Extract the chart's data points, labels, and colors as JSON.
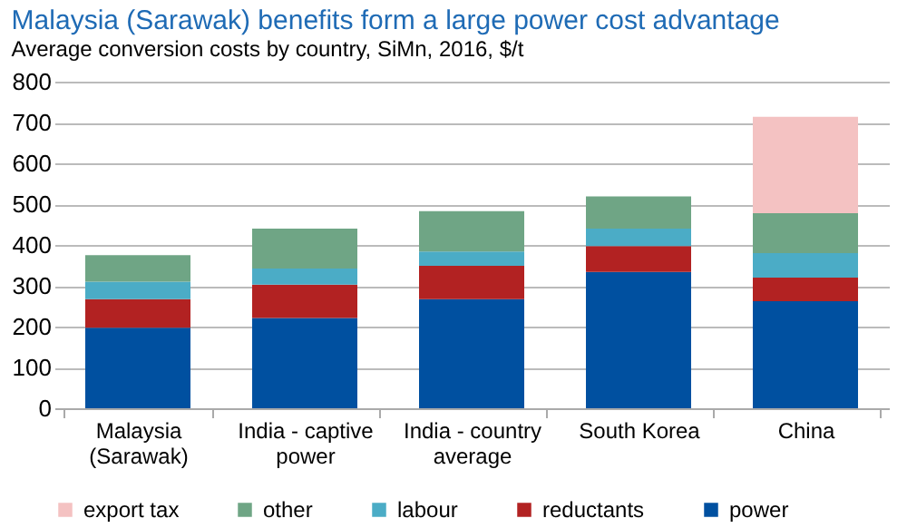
{
  "chart_data": {
    "type": "bar",
    "stacked": true,
    "title": "Malaysia (Sarawak) benefits form a large power cost advantage",
    "subtitle": "Average  conversion  costs by country, SiMn, 2016, $/t",
    "categories": [
      "Malaysia (Sarawak)",
      "India - captive power",
      "India - country average",
      "South Korea",
      "China"
    ],
    "series": [
      {
        "name": "power",
        "color": "#0050a0",
        "values": [
          197,
          221,
          267,
          334,
          262
        ]
      },
      {
        "name": "reductants",
        "color": "#b22222",
        "values": [
          70,
          82,
          82,
          63,
          58
        ]
      },
      {
        "name": "labour",
        "color": "#4bacc6",
        "values": [
          43,
          39,
          35,
          43,
          60
        ]
      },
      {
        "name": "other",
        "color": "#6fa585",
        "values": [
          65,
          98,
          99,
          79,
          98
        ]
      },
      {
        "name": "export tax",
        "color": "#f4c2c2",
        "values": [
          0,
          0,
          0,
          0,
          236
        ]
      }
    ],
    "ylim": [
      0,
      800
    ],
    "yticks": [
      0,
      100,
      200,
      300,
      400,
      500,
      600,
      700,
      800
    ],
    "grid": "y",
    "legend": "bottom"
  }
}
